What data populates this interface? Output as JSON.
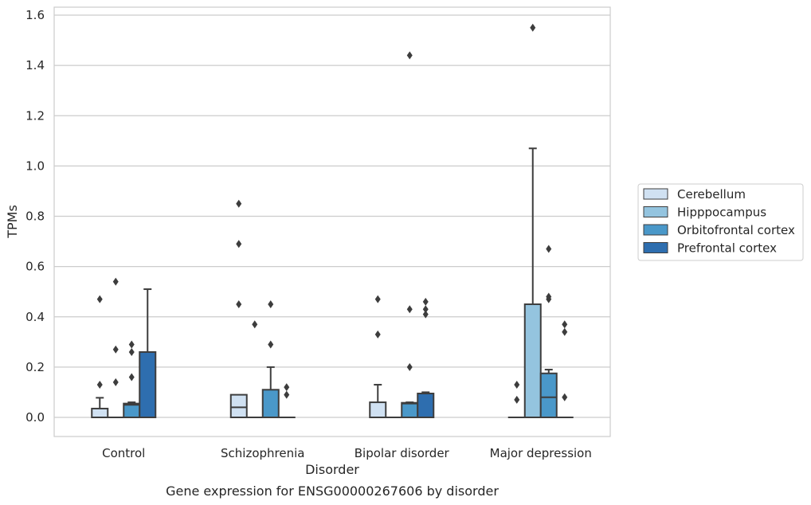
{
  "chart_data": {
    "type": "box",
    "caption": "Gene expression for ENSG00000267606 by disorder",
    "xlabel": "Disorder",
    "ylabel": "TPMs",
    "ylim": [
      -0.075,
      1.64
    ],
    "yticks": [
      0.0,
      0.2,
      0.4,
      0.6,
      0.8,
      1.0,
      1.2,
      1.4,
      1.6
    ],
    "ytick_labels": [
      "0.0",
      "0.2",
      "0.4",
      "0.6",
      "0.8",
      "1.0",
      "1.2",
      "1.4",
      "1.6"
    ],
    "categories": [
      "Control",
      "Schizophrenia",
      "Bipolar disorder",
      "Major depression"
    ],
    "grid": "horizontal",
    "legend_position": "right",
    "series": [
      {
        "name": "Cerebellum",
        "color": "#d0e1f2",
        "boxes": [
          {
            "q1": 0.0,
            "median": 0.0,
            "q3": 0.035,
            "whisker_low": 0.0,
            "whisker_high": 0.078,
            "outliers": [
              0.13,
              0.47
            ]
          },
          {
            "q1": 0.0,
            "median": 0.04,
            "q3": 0.09,
            "whisker_low": 0.0,
            "whisker_high": 0.09,
            "outliers": [
              0.45,
              0.69,
              0.85
            ]
          },
          {
            "q1": 0.0,
            "median": 0.0,
            "q3": 0.06,
            "whisker_low": 0.0,
            "whisker_high": 0.13,
            "outliers": [
              0.33,
              0.47
            ]
          },
          {
            "q1": 0.0,
            "median": 0.0,
            "q3": 0.0,
            "whisker_low": 0.0,
            "whisker_high": 0.0,
            "outliers": [
              0.07,
              0.13
            ]
          }
        ]
      },
      {
        "name": "Hipppocampus",
        "color": "#94c4df",
        "boxes": [
          {
            "q1": 0.0,
            "median": 0.0,
            "q3": 0.0,
            "whisker_low": 0.0,
            "whisker_high": 0.0,
            "outliers": [
              0.14,
              0.27,
              0.54
            ]
          },
          {
            "q1": 0.0,
            "median": 0.0,
            "q3": 0.0,
            "whisker_low": 0.0,
            "whisker_high": 0.0,
            "outliers": [
              0.37
            ]
          },
          {
            "q1": 0.0,
            "median": 0.0,
            "q3": 0.0,
            "whisker_low": 0.0,
            "whisker_high": 0.0,
            "outliers": []
          },
          {
            "q1": 0.0,
            "median": 0.0,
            "q3": 0.45,
            "whisker_low": 0.0,
            "whisker_high": 1.07,
            "outliers": [
              1.55
            ]
          }
        ]
      },
      {
        "name": "Orbitofrontal cortex",
        "color": "#4a98c9",
        "boxes": [
          {
            "q1": 0.0,
            "median": 0.05,
            "q3": 0.055,
            "whisker_low": 0.0,
            "whisker_high": 0.06,
            "outliers": [
              0.16,
              0.26,
              0.29
            ]
          },
          {
            "q1": 0.0,
            "median": 0.0,
            "q3": 0.11,
            "whisker_low": 0.0,
            "whisker_high": 0.2,
            "outliers": [
              0.29,
              0.45
            ]
          },
          {
            "q1": 0.0,
            "median": 0.055,
            "q3": 0.058,
            "whisker_low": 0.0,
            "whisker_high": 0.06,
            "outliers": [
              0.2,
              0.43,
              1.44
            ]
          },
          {
            "q1": 0.0,
            "median": 0.08,
            "q3": 0.175,
            "whisker_low": 0.0,
            "whisker_high": 0.19,
            "outliers": [
              0.47,
              0.48,
              0.67
            ]
          }
        ]
      },
      {
        "name": "Prefrontal cortex",
        "color": "#2e6eaf",
        "boxes": [
          {
            "q1": 0.0,
            "median": 0.0,
            "q3": 0.26,
            "whisker_low": 0.0,
            "whisker_high": 0.51,
            "outliers": []
          },
          {
            "q1": 0.0,
            "median": 0.0,
            "q3": 0.0,
            "whisker_low": 0.0,
            "whisker_high": 0.0,
            "outliers": [
              0.09,
              0.12
            ]
          },
          {
            "q1": 0.0,
            "median": 0.0,
            "q3": 0.095,
            "whisker_low": 0.0,
            "whisker_high": 0.1,
            "outliers": [
              0.41,
              0.43,
              0.46
            ]
          },
          {
            "q1": 0.0,
            "median": 0.0,
            "q3": 0.0,
            "whisker_low": 0.0,
            "whisker_high": 0.0,
            "outliers": [
              0.08,
              0.34,
              0.37
            ]
          }
        ]
      }
    ]
  }
}
